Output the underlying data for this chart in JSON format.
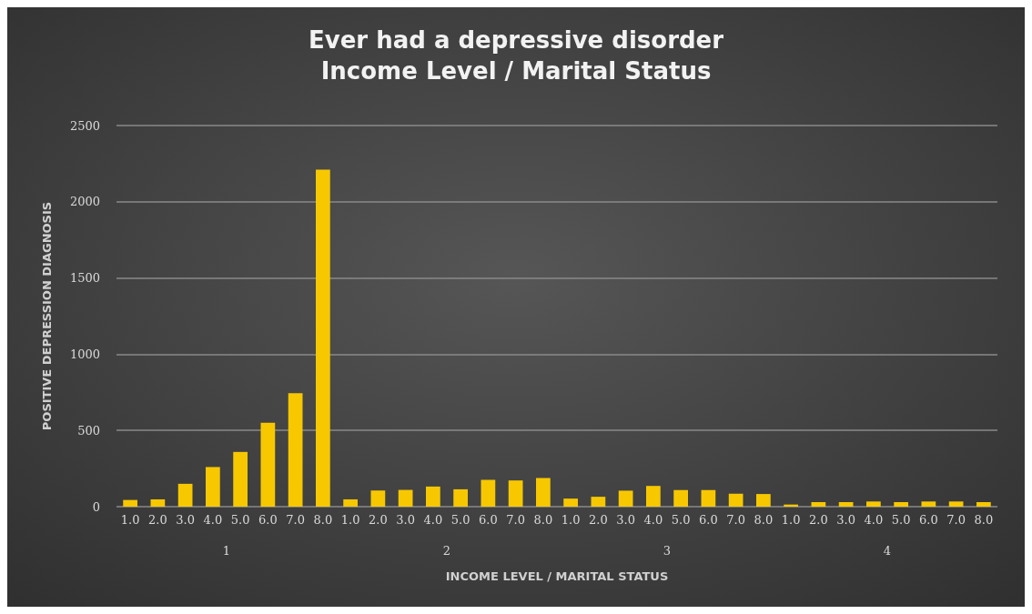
{
  "chart_data": {
    "type": "bar",
    "title": "Ever had a depressive disorder\nIncome Level / Marital Status",
    "xlabel": "INCOME LEVEL / MARITAL STATUS",
    "ylabel": "POSITIVE DEPRESSION DIAGNOSIS",
    "categories": [
      "1.0",
      "2.0",
      "3.0",
      "4.0",
      "5.0",
      "6.0",
      "7.0",
      "8.0",
      "1.0",
      "2.0",
      "3.0",
      "4.0",
      "5.0",
      "6.0",
      "7.0",
      "8.0",
      "1.0",
      "2.0",
      "3.0",
      "4.0",
      "5.0",
      "6.0",
      "7.0",
      "8.0",
      "1.0",
      "2.0",
      "3.0",
      "4.0",
      "5.0",
      "6.0",
      "7.0",
      "8.0"
    ],
    "values": [
      44,
      48,
      150,
      260,
      359,
      551,
      744,
      2210,
      48,
      106,
      110,
      132,
      114,
      176,
      172,
      188,
      53,
      65,
      105,
      136,
      109,
      109,
      85,
      83,
      14,
      30,
      30,
      34,
      30,
      34,
      34,
      30
    ],
    "color": "#f7c800",
    "annotations": [
      "1",
      "2",
      "3",
      "4"
    ],
    "ylim": [
      0,
      2500
    ],
    "yticks": [
      0,
      500,
      1000,
      1500,
      2000,
      2500
    ],
    "grid": "y"
  }
}
